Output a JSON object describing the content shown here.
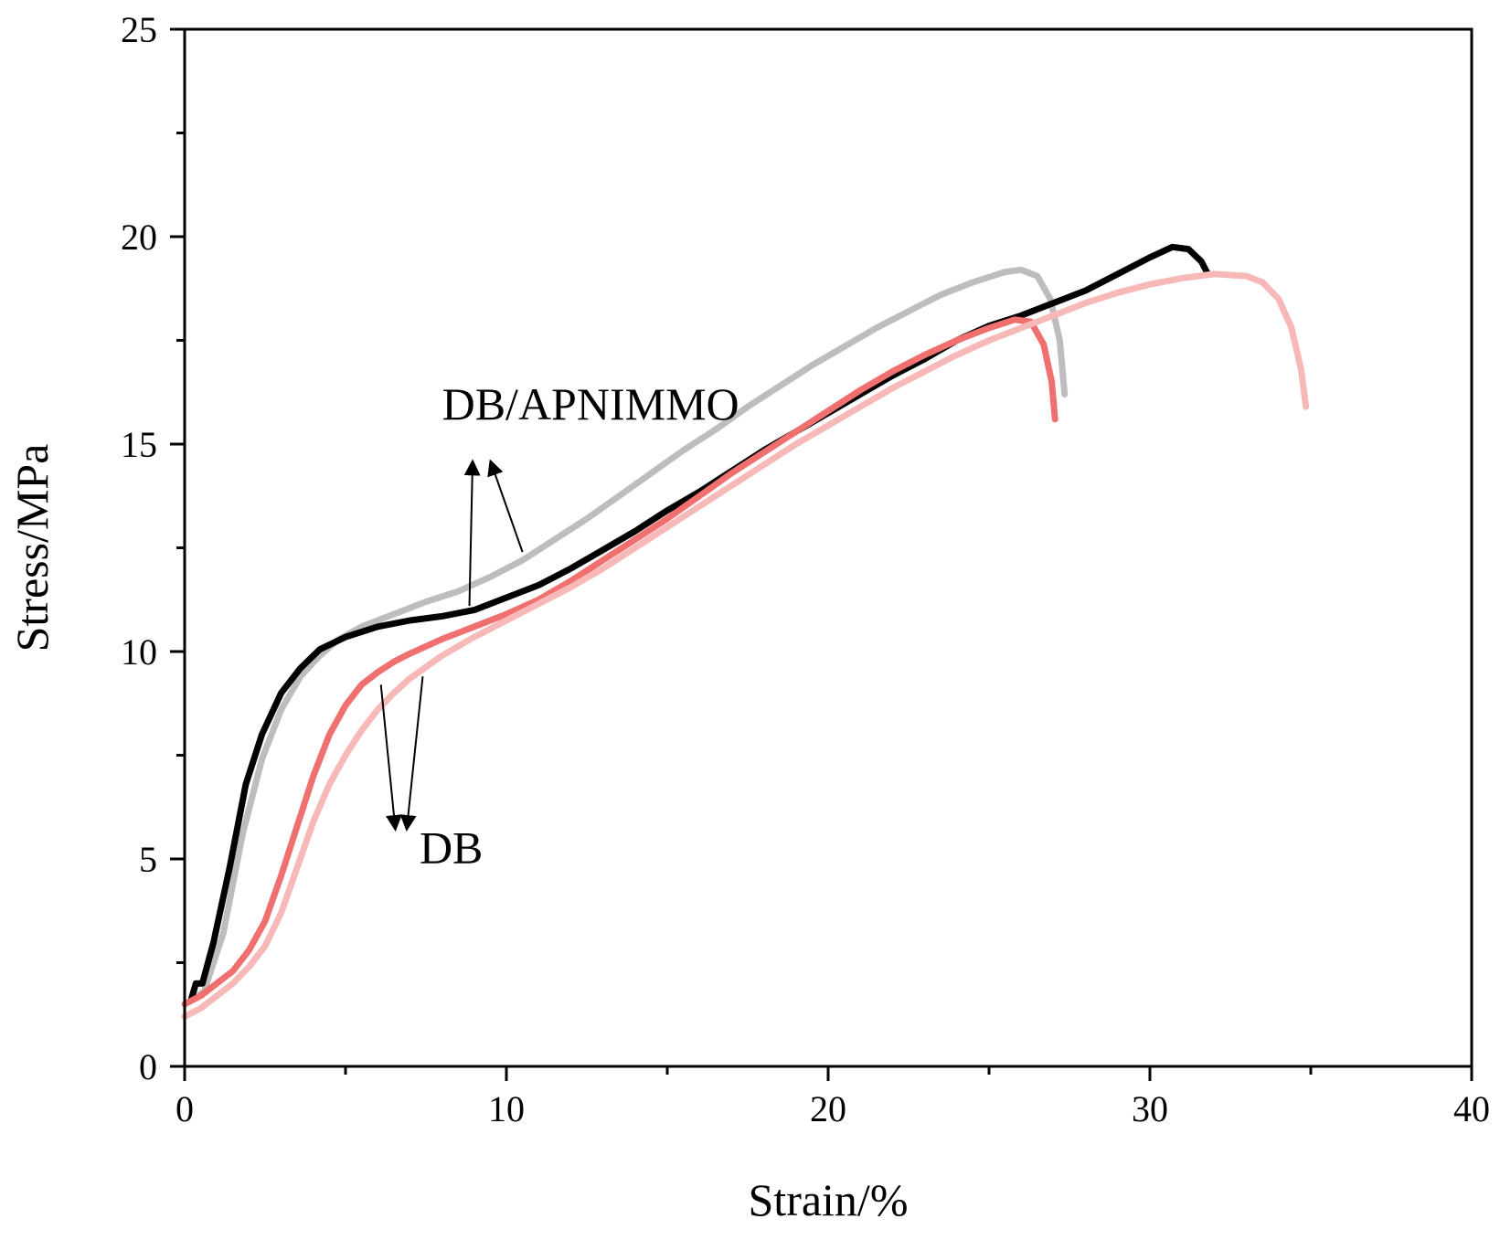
{
  "chart_data": {
    "type": "line",
    "xlabel": "Strain/%",
    "ylabel": "Stress/MPa",
    "xlim": [
      0,
      40
    ],
    "ylim": [
      0,
      25
    ],
    "xticks": [
      0,
      10,
      20,
      30,
      40
    ],
    "yticks": [
      0,
      5,
      10,
      15,
      20,
      25
    ],
    "xtick_labels": [
      "0",
      "10",
      "20",
      "30",
      "40"
    ],
    "ytick_labels": [
      "0",
      "5",
      "10",
      "15",
      "20",
      "25"
    ],
    "grid": false,
    "series": [
      {
        "name": "DB/APNIMMO 1",
        "color": "#bdbdbd",
        "points": [
          [
            0.2,
            1.6
          ],
          [
            0.6,
            1.8
          ],
          [
            1.2,
            3.2
          ],
          [
            1.8,
            5.6
          ],
          [
            2.4,
            7.4
          ],
          [
            3.0,
            8.6
          ],
          [
            3.6,
            9.4
          ],
          [
            4.2,
            9.9
          ],
          [
            4.8,
            10.3
          ],
          [
            5.5,
            10.6
          ],
          [
            6.5,
            10.9
          ],
          [
            7.5,
            11.2
          ],
          [
            8.5,
            11.45
          ],
          [
            9.5,
            11.8
          ],
          [
            10.5,
            12.2
          ],
          [
            11.5,
            12.7
          ],
          [
            12.5,
            13.2
          ],
          [
            13.5,
            13.75
          ],
          [
            14.5,
            14.3
          ],
          [
            15.5,
            14.85
          ],
          [
            16.5,
            15.35
          ],
          [
            17.5,
            15.9
          ],
          [
            18.5,
            16.4
          ],
          [
            19.5,
            16.9
          ],
          [
            20.5,
            17.35
          ],
          [
            21.5,
            17.8
          ],
          [
            22.5,
            18.2
          ],
          [
            23.5,
            18.6
          ],
          [
            24.5,
            18.9
          ],
          [
            25.5,
            19.15
          ],
          [
            26.0,
            19.2
          ],
          [
            26.5,
            19.05
          ],
          [
            26.9,
            18.5
          ],
          [
            27.2,
            17.5
          ],
          [
            27.35,
            16.2
          ]
        ]
      },
      {
        "name": "DB/APNIMMO 2",
        "color": "#000000",
        "points": [
          [
            0.2,
            1.6
          ],
          [
            0.35,
            2.0
          ],
          [
            0.55,
            2.0
          ],
          [
            0.9,
            3.0
          ],
          [
            1.4,
            4.8
          ],
          [
            1.9,
            6.8
          ],
          [
            2.4,
            8.0
          ],
          [
            3.0,
            9.0
          ],
          [
            3.6,
            9.6
          ],
          [
            4.2,
            10.05
          ],
          [
            5.0,
            10.35
          ],
          [
            6.0,
            10.6
          ],
          [
            7.0,
            10.75
          ],
          [
            8.0,
            10.85
          ],
          [
            9.0,
            11.0
          ],
          [
            10.0,
            11.3
          ],
          [
            11.0,
            11.6
          ],
          [
            12.0,
            12.0
          ],
          [
            13.0,
            12.45
          ],
          [
            14.0,
            12.9
          ],
          [
            15.0,
            13.4
          ],
          [
            16.0,
            13.85
          ],
          [
            17.0,
            14.35
          ],
          [
            18.0,
            14.85
          ],
          [
            19.0,
            15.3
          ],
          [
            20.0,
            15.75
          ],
          [
            21.0,
            16.2
          ],
          [
            22.0,
            16.65
          ],
          [
            23.0,
            17.05
          ],
          [
            24.0,
            17.5
          ],
          [
            25.0,
            17.85
          ],
          [
            26.0,
            18.1
          ],
          [
            27.0,
            18.4
          ],
          [
            28.0,
            18.7
          ],
          [
            29.0,
            19.1
          ],
          [
            30.0,
            19.5
          ],
          [
            30.7,
            19.75
          ],
          [
            31.2,
            19.7
          ],
          [
            31.6,
            19.4
          ],
          [
            31.8,
            19.1
          ]
        ]
      },
      {
        "name": "DB 1",
        "color": "#f07070",
        "points": [
          [
            0.0,
            1.5
          ],
          [
            0.5,
            1.7
          ],
          [
            1.0,
            2.0
          ],
          [
            1.5,
            2.3
          ],
          [
            2.0,
            2.8
          ],
          [
            2.5,
            3.5
          ],
          [
            3.0,
            4.6
          ],
          [
            3.5,
            5.8
          ],
          [
            4.0,
            7.0
          ],
          [
            4.5,
            8.0
          ],
          [
            5.0,
            8.7
          ],
          [
            5.5,
            9.2
          ],
          [
            6.0,
            9.5
          ],
          [
            6.5,
            9.75
          ],
          [
            7.0,
            9.95
          ],
          [
            8.0,
            10.3
          ],
          [
            9.0,
            10.6
          ],
          [
            10.0,
            10.9
          ],
          [
            11.0,
            11.25
          ],
          [
            12.0,
            11.7
          ],
          [
            13.0,
            12.2
          ],
          [
            14.0,
            12.7
          ],
          [
            15.0,
            13.2
          ],
          [
            16.0,
            13.75
          ],
          [
            17.0,
            14.3
          ],
          [
            18.0,
            14.8
          ],
          [
            19.0,
            15.3
          ],
          [
            20.0,
            15.8
          ],
          [
            21.0,
            16.3
          ],
          [
            22.0,
            16.75
          ],
          [
            23.0,
            17.15
          ],
          [
            24.0,
            17.5
          ],
          [
            25.0,
            17.8
          ],
          [
            25.8,
            18.0
          ],
          [
            26.3,
            17.95
          ],
          [
            26.7,
            17.4
          ],
          [
            26.95,
            16.5
          ],
          [
            27.05,
            15.6
          ]
        ]
      },
      {
        "name": "DB 2",
        "color": "#f7b8b8",
        "points": [
          [
            0.0,
            1.2
          ],
          [
            0.5,
            1.4
          ],
          [
            1.0,
            1.7
          ],
          [
            1.5,
            2.0
          ],
          [
            2.0,
            2.4
          ],
          [
            2.5,
            2.9
          ],
          [
            3.0,
            3.7
          ],
          [
            3.5,
            4.8
          ],
          [
            4.0,
            5.9
          ],
          [
            4.5,
            6.8
          ],
          [
            5.0,
            7.5
          ],
          [
            5.5,
            8.1
          ],
          [
            6.0,
            8.6
          ],
          [
            6.5,
            9.0
          ],
          [
            7.0,
            9.35
          ],
          [
            8.0,
            9.9
          ],
          [
            9.0,
            10.35
          ],
          [
            10.0,
            10.75
          ],
          [
            11.0,
            11.15
          ],
          [
            12.0,
            11.55
          ],
          [
            13.0,
            12.0
          ],
          [
            14.0,
            12.5
          ],
          [
            15.0,
            13.0
          ],
          [
            16.0,
            13.5
          ],
          [
            17.0,
            14.0
          ],
          [
            18.0,
            14.5
          ],
          [
            19.0,
            15.0
          ],
          [
            20.0,
            15.45
          ],
          [
            21.0,
            15.9
          ],
          [
            22.0,
            16.35
          ],
          [
            23.0,
            16.75
          ],
          [
            24.0,
            17.15
          ],
          [
            25.0,
            17.5
          ],
          [
            26.0,
            17.8
          ],
          [
            27.0,
            18.1
          ],
          [
            28.0,
            18.4
          ],
          [
            29.0,
            18.65
          ],
          [
            30.0,
            18.85
          ],
          [
            31.0,
            19.0
          ],
          [
            32.0,
            19.1
          ],
          [
            33.0,
            19.05
          ],
          [
            33.5,
            18.9
          ],
          [
            34.0,
            18.5
          ],
          [
            34.4,
            17.8
          ],
          [
            34.7,
            16.8
          ],
          [
            34.85,
            15.9
          ]
        ]
      }
    ],
    "annotations": [
      {
        "text": "DB/APNIMMO",
        "position": [
          8.0,
          15.6
        ],
        "arrows": [
          {
            "from": [
              8.85,
              11.1
            ],
            "to": [
              8.95,
              14.6
            ]
          },
          {
            "from": [
              10.5,
              12.4
            ],
            "to": [
              9.5,
              14.6
            ]
          }
        ]
      },
      {
        "text": "DB",
        "position": [
          7.3,
          4.9
        ],
        "arrows": [
          {
            "from": [
              6.1,
              9.2
            ],
            "to": [
              6.55,
              5.7
            ]
          },
          {
            "from": [
              7.4,
              9.4
            ],
            "to": [
              6.9,
              5.7
            ]
          }
        ]
      }
    ]
  }
}
